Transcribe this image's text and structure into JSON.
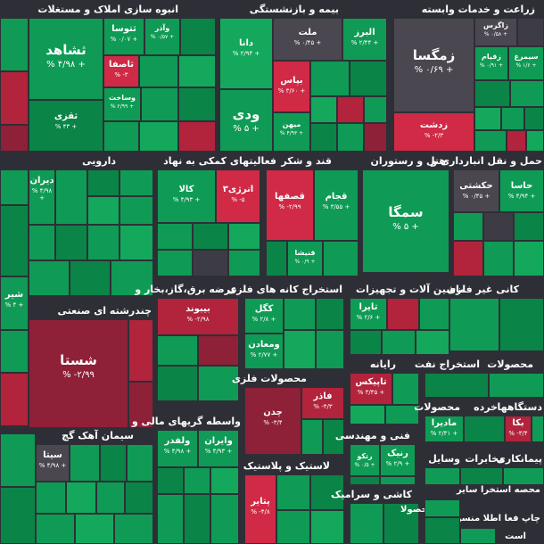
{
  "palette": {
    "up": "#0f9b55",
    "up_strong": "#13a85c",
    "down": "#b2233c",
    "down_dark": "#8e2038",
    "neutral": "#4a4750",
    "background": "#2e2f36"
  },
  "sectors": [
    {
      "id": "s_zeraat",
      "label": "زراعت و خدمات وابسته"
    },
    {
      "id": "s_bime",
      "label": "بیمه و بازنشستگی"
    },
    {
      "id": "s_anbooh",
      "label": "انبوه سازی املاک و مستغلات"
    },
    {
      "id": "s_haml",
      "label": "حمل و نقل انبارداری و"
    },
    {
      "id": "s_hotel",
      "label": "هتل و رستوران"
    },
    {
      "id": "s_ghand",
      "label": "قند و شکر"
    },
    {
      "id": "s_faaliat",
      "label": "فعالیتهای کمکی به نهاد"
    },
    {
      "id": "s_daroo",
      "label": "دارویی"
    },
    {
      "id": "s_kani",
      "label": "کانی غیر فلزی"
    },
    {
      "id": "s_mashin",
      "label": "ماشین آلات و تجهیزات"
    },
    {
      "id": "s_estekhraj_felez",
      "label": "استخراج کانه های فلزی"
    },
    {
      "id": "s_arze_bargh",
      "label": "عرضه برق،گاز،بخار و"
    },
    {
      "id": "s_chand",
      "label": "چندرشته ای صنعتی"
    },
    {
      "id": "s_mahsoolat",
      "label": "محصولات"
    },
    {
      "id": "s_naft",
      "label": "استخراج نفت"
    },
    {
      "id": "s_rayane",
      "label": "رایانه"
    },
    {
      "id": "s_mahsoolat_felezi",
      "label": "محصولات فلزی"
    },
    {
      "id": "s_dastgah",
      "label": "دستگاهها"
    },
    {
      "id": "s_khorde",
      "label": "خرده"
    },
    {
      "id": "s_mahsoolat2",
      "label": "محصولات"
    },
    {
      "id": "s_vaseteh",
      "label": "واسطه گریهای مالی و"
    },
    {
      "id": "s_siman",
      "label": "سیمان آهک گچ"
    },
    {
      "id": "s_fani",
      "label": "فنی و مهندسی"
    },
    {
      "id": "s_vasayel",
      "label": "وسایل"
    },
    {
      "id": "s_mokhaberat",
      "label": "مخابرات"
    },
    {
      "id": "s_peymankari",
      "label": "پیمانکاری"
    },
    {
      "id": "s_lastik",
      "label": "لاستیک و پلاستیک"
    },
    {
      "id": "s_kashi",
      "label": "کاشی و سرامیک"
    },
    {
      "id": "s_mahsoolat3",
      "label": "محصولا"
    },
    {
      "id": "s_mahse",
      "label": "محصه استخرا سایر"
    },
    {
      "id": "s_chap",
      "label": "چاپ فعا اطلا منسوج"
    },
    {
      "id": "s_ast",
      "label": "است"
    },
    {
      "id": "s_vasayel_l",
      "label": "وسا"
    },
    {
      "id": "s_chand2",
      "label": "چند"
    }
  ],
  "tiles": {
    "zagros": {
      "name": "زاگرس",
      "pct": "% ۰/۵۸ +"
    },
    "zamgsa": {
      "name": "زمگسا",
      "pct": "% ۰/۶۹ +"
    },
    "zeqiam": {
      "name": "زقیام",
      "pct": "% ۰/۹۱ +"
    },
    "simorgh": {
      "name": "سیمرغ",
      "pct": "% ۱/۶ +"
    },
    "zashat": {
      "name": "زدشت",
      "pct": "% -۲/۳"
    },
    "alborz": {
      "name": "البرز",
      "pct": "% ۲/۴۴ +"
    },
    "mellat": {
      "name": "ملت",
      "pct": "% ۰/۴۵ +"
    },
    "dana": {
      "name": "دانا",
      "pct": "% ۲/۹۴ +"
    },
    "bpas": {
      "name": "بپاس",
      "pct": "% ۳/۶۰ +"
    },
    "vadi": {
      "name": "ودی",
      "pct": "% ۵ +"
    },
    "mihan": {
      "name": "میهن",
      "pct": "% ۴/۹۳ +"
    },
    "shahed": {
      "name": "ثشاهد",
      "pct": "% ۴/۹۸ +"
    },
    "toosa": {
      "name": "ثتوسا",
      "pct": "% ۰/۰۷ +"
    },
    "vaazar": {
      "name": "وآذر",
      "pct": "% ۰/۵۷ +"
    },
    "asfa": {
      "name": "ثاصفا",
      "pct": "% -۳"
    },
    "vsakht": {
      "name": "وساخت",
      "pct": "% ۲/۹۹ +"
    },
    "taqazi": {
      "name": "ثقزی",
      "pct": "% ۴۳ +"
    },
    "hasina": {
      "name": "حاسا",
      "pct": "% ۴/۹۴ +"
    },
    "hkeshti": {
      "name": "حکشتی",
      "pct": "% ۰/۳۵ +"
    },
    "semga": {
      "name": "سمگا",
      "pct": "% ۵ +"
    },
    "ghpaak": {
      "name": "قجام",
      "pct": "% ۳/۵۵ +"
    },
    "ghesfaha": {
      "name": "قصفها",
      "pct": "% -۲/۹۹"
    },
    "ghanisha": {
      "name": "قنیشا",
      "pct": "% ۰/۹ +"
    },
    "kala": {
      "name": "کالا",
      "pct": "% ۴/۹۳ +"
    },
    "enrji": {
      "name": "انرژی۳",
      "pct": "% -۵"
    },
    "diran": {
      "name": "دیران",
      "pct": "% ۴/۹۸ +"
    },
    "kegol": {
      "name": "کگل",
      "pct": "% ۲/۸ +"
    },
    "moaden": {
      "name": "ومعادن",
      "pct": "% ۲/۷۷ +"
    },
    "bebvand": {
      "name": "بیبوند",
      "pct": "% -۲/۹۸"
    },
    "shasta": {
      "name": "شستا",
      "pct": "% -۲/۹۹"
    },
    "taira": {
      "name": "تایرا",
      "pct": "% ۲/۶ +"
    },
    "tapikosh": {
      "name": "تاپیکس",
      "pct": "% ۳/۳۵ +"
    },
    "fader": {
      "name": "فاذر",
      "pct": "% -۴/۳"
    },
    "chadon": {
      "name": "چدن",
      "pct": "% -۳/۴"
    },
    "madira": {
      "name": "مادیرا",
      "pct": "% ۲/۳۱ +"
    },
    "bakaa": {
      "name": "بکا",
      "pct": "% -۳/۴"
    },
    "valfadr": {
      "name": "ولفدر",
      "pct": "% ۴/۹۸ +"
    },
    "vairan": {
      "name": "وایران",
      "pct": "% ۴/۹۳ +"
    },
    "sita": {
      "name": "سیتا",
      "pct": "% ۴/۹۸ +"
    },
    "rakio": {
      "name": "رتکو",
      "pct": "% ۰/۵ +"
    },
    "rank": {
      "name": "رنیک",
      "pct": "% ۲/۹ +"
    },
    "ptayr": {
      "name": "پتایر",
      "pct": "% -۴/۸"
    },
    "shir": {
      "name": "شیر",
      "pct": "% ۴ +"
    }
  }
}
